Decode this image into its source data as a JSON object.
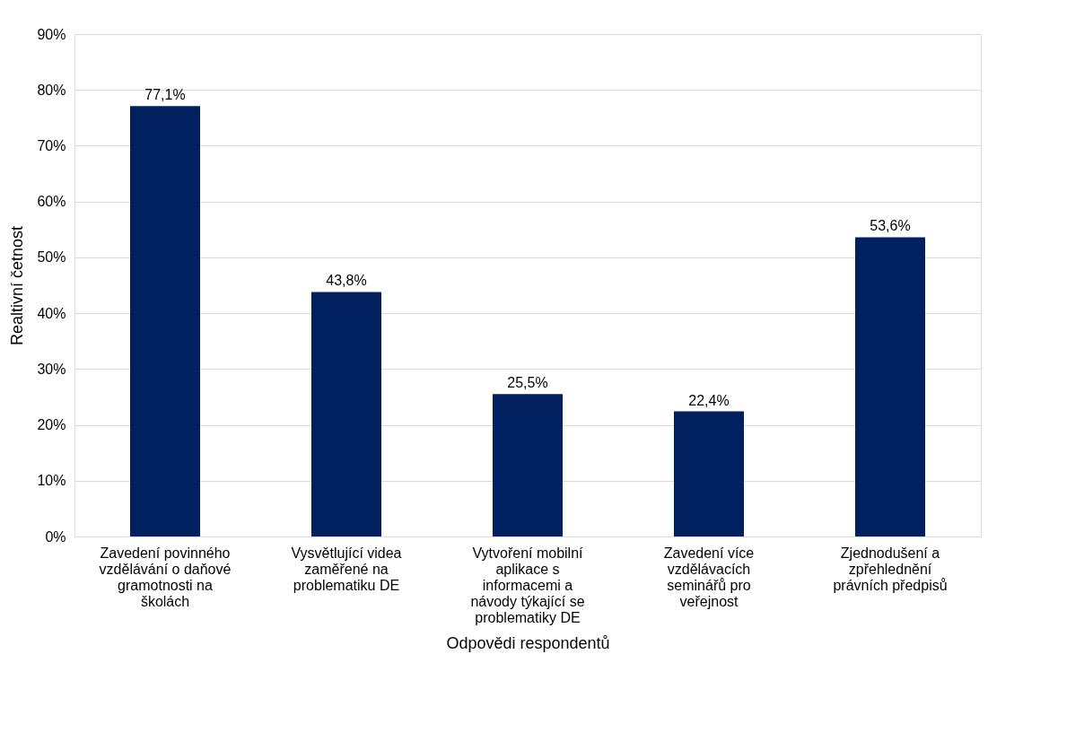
{
  "chart_data": {
    "type": "bar",
    "xlabel": "Odpovědi respondentů",
    "ylabel": "Realtivní četnost",
    "categories": [
      "Zavedení povinného\nvzdělávání o daňové\ngramotnosti na\nškolách",
      "Vysvětlující videa\nzaměřené na\nproblematiku DE",
      "Vytvoření mobilní\naplikace s\ninformacemi a\nnávody týkající se\nproblematiky DE",
      "Zavedení více\nvzdělávacích\nseminářů pro\nveřejnost",
      "Zjednodušení a\nzpřehlednění\nprávních předpisů"
    ],
    "values": [
      77.1,
      43.8,
      25.5,
      22.4,
      53.6
    ],
    "value_labels": [
      "77,1%",
      "43,8%",
      "25,5%",
      "22,4%",
      "53,6%"
    ],
    "color": "#002060",
    "ylim": [
      0,
      90
    ],
    "yticks": [
      {
        "value": 0,
        "label": "0%"
      },
      {
        "value": 10,
        "label": "10%"
      },
      {
        "value": 20,
        "label": "20%"
      },
      {
        "value": 30,
        "label": "30%"
      },
      {
        "value": 40,
        "label": "40%"
      },
      {
        "value": 50,
        "label": "50%"
      },
      {
        "value": 60,
        "label": "60%"
      },
      {
        "value": 70,
        "label": "70%"
      },
      {
        "value": 80,
        "label": "80%"
      },
      {
        "value": 90,
        "label": "90%"
      }
    ],
    "grid": "y"
  }
}
